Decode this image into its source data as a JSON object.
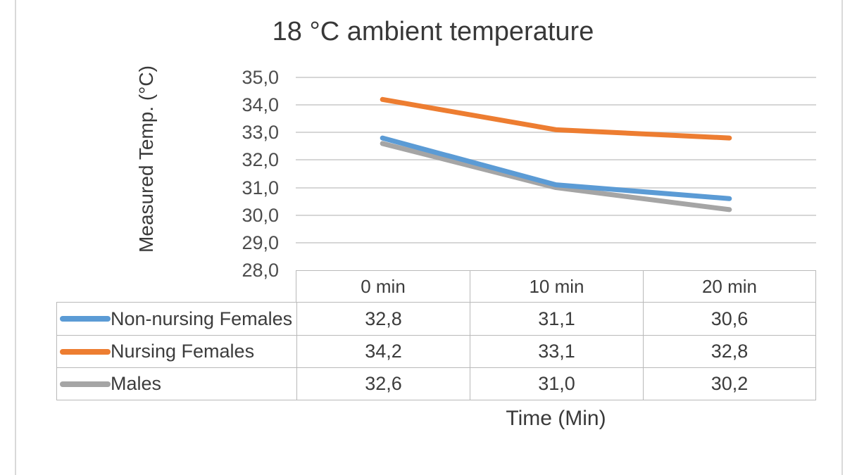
{
  "chart_data": {
    "type": "line",
    "title": "18 °C ambient temperature",
    "xlabel": "Time (Min)",
    "ylabel": "Measured Temp. (°C)",
    "categories": [
      "0 min",
      "10 min",
      "20 min"
    ],
    "series": [
      {
        "name": "Non-nursing Females",
        "color": "#5B9BD5",
        "values": [
          32.8,
          31.1,
          30.6
        ],
        "value_labels": [
          "32,8",
          "31,1",
          "30,6"
        ]
      },
      {
        "name": "Nursing Females",
        "color": "#ED7D31",
        "values": [
          34.2,
          33.1,
          32.8
        ],
        "value_labels": [
          "34,2",
          "33,1",
          "32,8"
        ]
      },
      {
        "name": "Males",
        "color": "#A5A5A5",
        "values": [
          32.6,
          31.0,
          30.2
        ],
        "value_labels": [
          "32,6",
          "31,0",
          "30,2"
        ]
      }
    ],
    "y_ticks": [
      "35,0",
      "34,0",
      "33,0",
      "32,0",
      "31,0",
      "30,0",
      "29,0",
      "28,0"
    ],
    "ylim": [
      28.0,
      35.0
    ],
    "grid": true,
    "legend_position": "table-left",
    "decimal_separator": ","
  },
  "colors": {
    "border": "#b9b9b9",
    "gridline": "#d6d6d6",
    "text": "#3c3c3c",
    "tick_text": "#4d4d4d",
    "frame_line": "#d9d9d9",
    "background": "#ffffff"
  }
}
